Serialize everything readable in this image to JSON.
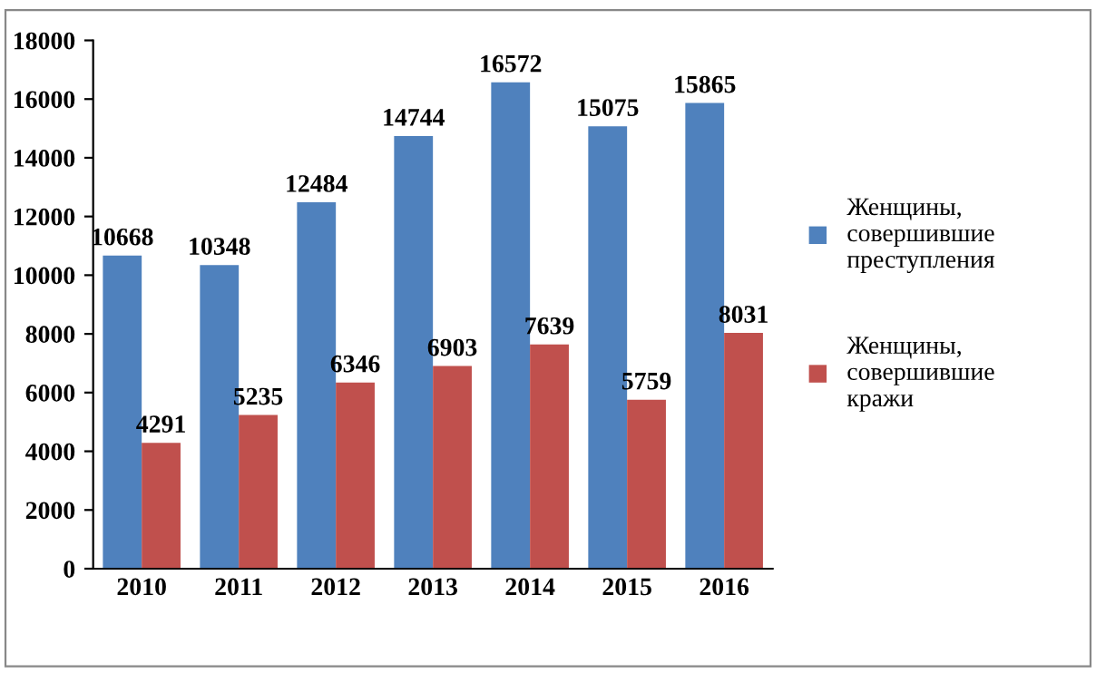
{
  "chart_data": {
    "type": "bar",
    "categories": [
      "2010",
      "2011",
      "2012",
      "2013",
      "2014",
      "2015",
      "2016"
    ],
    "series": [
      {
        "name": "Женщины, совершившие преступления",
        "color": "#4f81bd",
        "values": [
          10668,
          10348,
          12484,
          14744,
          16572,
          15075,
          15865
        ]
      },
      {
        "name": "Женщины, совершившие кражи",
        "color": "#c0504d",
        "values": [
          4291,
          5235,
          6346,
          6903,
          7639,
          5759,
          8031
        ]
      }
    ],
    "ylim": [
      0,
      18000
    ],
    "yticks": [
      0,
      2000,
      4000,
      6000,
      8000,
      10000,
      12000,
      14000,
      16000,
      18000
    ],
    "grid": false,
    "legend": "right",
    "data_labels": true
  }
}
